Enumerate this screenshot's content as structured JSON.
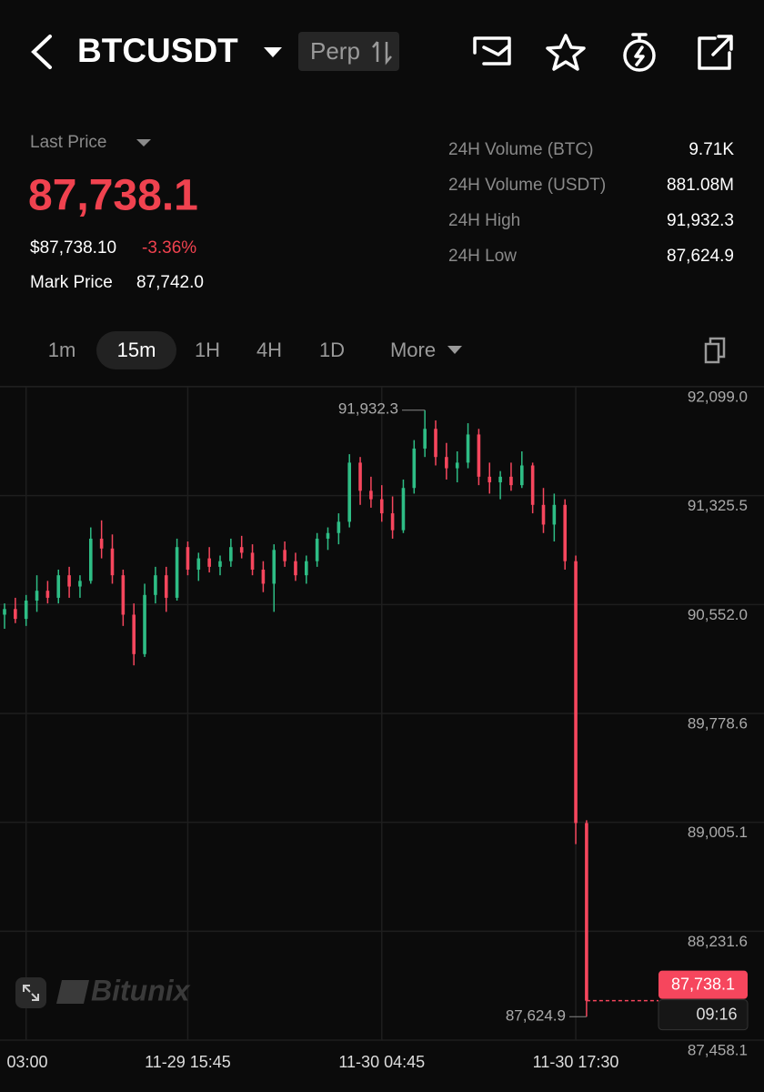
{
  "header": {
    "symbol": "BTCUSDT",
    "contract": "Perp"
  },
  "summary": {
    "last_price_label": "Last Price",
    "last_price": "87,738.1",
    "usd_price": "$87,738.10",
    "change": "-3.36%",
    "mark_price_label": "Mark Price",
    "mark_price": "87,742.0",
    "stats": [
      {
        "label": "24H Volume (BTC)",
        "value": "9.71K"
      },
      {
        "label": "24H Volume (USDT)",
        "value": "881.08M"
      },
      {
        "label": "24H High",
        "value": "91,932.3"
      },
      {
        "label": "24H Low",
        "value": "87,624.9"
      }
    ]
  },
  "timeframes": [
    "1m",
    "15m",
    "1H",
    "4H",
    "1D",
    "More"
  ],
  "watermark": "Bitunix",
  "chart_data": {
    "type": "candlestick",
    "up_color": "#2ebd85",
    "down_color": "#f6465d",
    "grid": true,
    "categories": [
      null,
      null,
      "03:00",
      null,
      null,
      null,
      null,
      null,
      null,
      null,
      null,
      null,
      null,
      null,
      null,
      null,
      null,
      "11-29 15:45",
      null,
      null,
      null,
      null,
      null,
      null,
      null,
      null,
      null,
      null,
      null,
      null,
      null,
      null,
      null,
      null,
      null,
      "11-30 04:45",
      null,
      null,
      null,
      null,
      null,
      null,
      null,
      null,
      null,
      null,
      null,
      null,
      null,
      null,
      null,
      null,
      null,
      "11-30 17:30",
      null
    ],
    "open": [
      90480,
      90520,
      90450,
      90580,
      90650,
      90600,
      90760,
      90680,
      90720,
      91020,
      90950,
      90760,
      90480,
      90200,
      90620,
      90760,
      90600,
      90960,
      90800,
      90880,
      90820,
      90860,
      90960,
      90920,
      90800,
      90700,
      90940,
      90860,
      90760,
      90860,
      91020,
      91060,
      91140,
      91560,
      91360,
      91300,
      91200,
      91080,
      91380,
      91660,
      91800,
      91600,
      91520,
      91560,
      91760,
      91460,
      91420,
      91460,
      91400,
      91540,
      91260,
      91120,
      91260,
      90860,
      89000
    ],
    "high": [
      90560,
      90600,
      90620,
      90760,
      90720,
      90800,
      90820,
      90760,
      91100,
      91150,
      91050,
      90800,
      90560,
      90700,
      90820,
      90820,
      91020,
      91000,
      90920,
      90960,
      90900,
      91020,
      91040,
      90980,
      90860,
      90980,
      91000,
      90920,
      90900,
      91060,
      91100,
      91200,
      91620,
      91600,
      91460,
      91400,
      91320,
      91440,
      91720,
      91932.3,
      91860,
      91700,
      91640,
      91840,
      91800,
      91560,
      91500,
      91560,
      91640,
      91560,
      91380,
      91340,
      91300,
      90900,
      89020
    ],
    "low": [
      90380,
      90420,
      90400,
      90500,
      90560,
      90560,
      90600,
      90600,
      90700,
      90880,
      90700,
      90400,
      90120,
      90180,
      90560,
      90500,
      90580,
      90760,
      90720,
      90780,
      90760,
      90820,
      90880,
      90760,
      90640,
      90500,
      90820,
      90720,
      90700,
      90820,
      90940,
      90980,
      91100,
      91260,
      91240,
      91140,
      91020,
      91060,
      91340,
      91600,
      91540,
      91440,
      91420,
      91520,
      91400,
      91340,
      91300,
      91360,
      91380,
      91200,
      91060,
      91000,
      90800,
      88850,
      87624.9
    ],
    "close": [
      90520,
      90450,
      90580,
      90650,
      90600,
      90760,
      90680,
      90720,
      91020,
      90950,
      90760,
      90480,
      90200,
      90620,
      90760,
      90600,
      90960,
      90800,
      90880,
      90820,
      90860,
      90960,
      90920,
      90800,
      90700,
      90940,
      90860,
      90760,
      90860,
      91020,
      91060,
      91140,
      91560,
      91360,
      91300,
      91200,
      91080,
      91380,
      91660,
      91800,
      91600,
      91520,
      91560,
      91760,
      91460,
      91420,
      91460,
      91400,
      91540,
      91260,
      91120,
      91260,
      90860,
      89000,
      87738.1
    ],
    "ylim": [
      87458.1,
      92099.0
    ],
    "yticks": [
      {
        "value": 87458.1,
        "label": "87,458.1"
      },
      {
        "value": 88231.6,
        "label": "88,231.6"
      },
      {
        "value": 89005.1,
        "label": "89,005.1"
      },
      {
        "value": 89778.6,
        "label": "89,778.6"
      },
      {
        "value": 90552.0,
        "label": "90,552.0"
      },
      {
        "value": 91325.5,
        "label": "91,325.5"
      },
      {
        "value": 92099.0,
        "label": "92,099.0"
      }
    ],
    "high_label": "91,932.3",
    "low_label": "87,624.9",
    "last_label": "87,738.1",
    "countdown": "09:16"
  }
}
